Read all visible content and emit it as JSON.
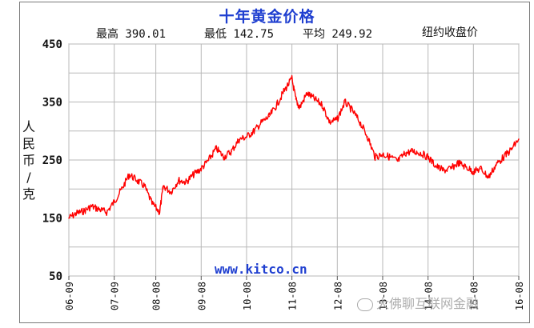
{
  "header": {
    "title": "十年黄金价格",
    "high_label": "最高 390.01",
    "low_label": "最低 142.75",
    "avg_label": "平均 249.92",
    "market": "纽约收盘价"
  },
  "site": "www.kitco.cn",
  "watermark": "大佛聊互联网金融",
  "colors": {
    "line": "#ff0000",
    "title": "#1f3fd0",
    "grid": "#b8b8b8"
  },
  "chart_data": {
    "type": "line",
    "title": "十年黄金价格",
    "xlabel": "",
    "ylabel": "人民币/克",
    "ylim": [
      50,
      450
    ],
    "yticks": [
      450,
      350,
      250,
      150,
      50
    ],
    "grid": true,
    "x_tick_labels": [
      "06-09",
      "07-09",
      "08-08",
      "09-08",
      "10-08",
      "11-08",
      "12-08",
      "13-08",
      "14-08",
      "15-08",
      "16-08"
    ],
    "series": [
      {
        "name": "",
        "x": [
          "2006-09",
          "2006-11",
          "2007-01",
          "2007-03",
          "2007-05",
          "2007-07",
          "2007-09",
          "2007-11",
          "2008-01",
          "2008-03",
          "2008-05",
          "2008-07",
          "2008-09",
          "2008-10",
          "2008-12",
          "2009-02",
          "2009-04",
          "2009-06",
          "2009-08",
          "2009-10",
          "2009-12",
          "2010-02",
          "2010-04",
          "2010-06",
          "2010-08",
          "2010-10",
          "2010-12",
          "2011-02",
          "2011-04",
          "2011-06",
          "2011-08",
          "2011-09",
          "2011-10",
          "2011-12",
          "2012-02",
          "2012-04",
          "2012-06",
          "2012-08",
          "2012-10",
          "2012-12",
          "2013-02",
          "2013-04",
          "2013-06",
          "2013-08",
          "2013-10",
          "2013-12",
          "2014-02",
          "2014-04",
          "2014-06",
          "2014-08",
          "2014-10",
          "2014-12",
          "2015-02",
          "2015-04",
          "2015-06",
          "2015-08",
          "2015-10",
          "2015-12",
          "2016-02",
          "2016-04",
          "2016-06",
          "2016-08"
        ],
        "values": [
          150,
          158,
          162,
          170,
          165,
          160,
          178,
          200,
          225,
          215,
          205,
          175,
          160,
          205,
          195,
          215,
          212,
          225,
          235,
          250,
          270,
          255,
          265,
          285,
          290,
          300,
          315,
          325,
          345,
          370,
          390,
          355,
          340,
          365,
          355,
          345,
          315,
          320,
          350,
          335,
          315,
          290,
          255,
          260,
          255,
          248,
          262,
          265,
          262,
          255,
          240,
          232,
          235,
          245,
          238,
          230,
          235,
          220,
          242,
          255,
          268,
          286
        ]
      }
    ]
  }
}
